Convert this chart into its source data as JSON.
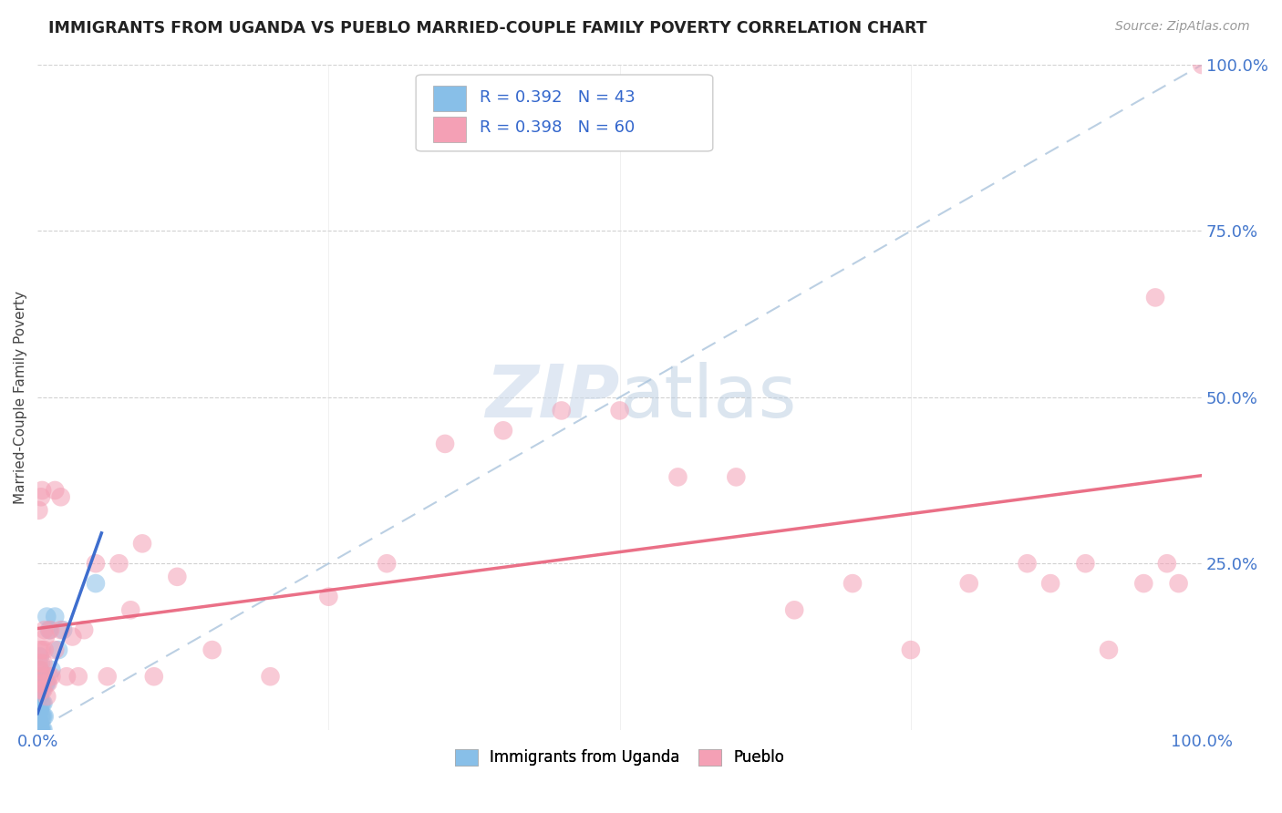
{
  "title": "IMMIGRANTS FROM UGANDA VS PUEBLO MARRIED-COUPLE FAMILY POVERTY CORRELATION CHART",
  "source": "Source: ZipAtlas.com",
  "ylabel": "Married-Couple Family Poverty",
  "legend_label1": "Immigrants from Uganda",
  "legend_label2": "Pueblo",
  "legend_r1": "R = 0.392",
  "legend_n1": "N = 43",
  "legend_r2": "R = 0.398",
  "legend_n2": "N = 60",
  "color_blue": "#88bfe8",
  "color_pink": "#f4a0b5",
  "color_blue_line": "#3366cc",
  "color_pink_line": "#e8607a",
  "color_diag": "#aac4dc",
  "background": "#ffffff",
  "blue_x": [
    0.001,
    0.001,
    0.001,
    0.001,
    0.001,
    0.001,
    0.001,
    0.001,
    0.001,
    0.001,
    0.002,
    0.002,
    0.002,
    0.002,
    0.002,
    0.002,
    0.002,
    0.002,
    0.002,
    0.003,
    0.003,
    0.003,
    0.003,
    0.003,
    0.003,
    0.004,
    0.004,
    0.004,
    0.004,
    0.005,
    0.005,
    0.005,
    0.006,
    0.006,
    0.007,
    0.008,
    0.008,
    0.01,
    0.012,
    0.015,
    0.018,
    0.022,
    0.05
  ],
  "blue_y": [
    0.0,
    0.0,
    0.0,
    0.0,
    0.0,
    0.01,
    0.02,
    0.03,
    0.05,
    0.07,
    0.0,
    0.0,
    0.0,
    0.01,
    0.03,
    0.05,
    0.07,
    0.09,
    0.11,
    0.0,
    0.0,
    0.02,
    0.04,
    0.06,
    0.08,
    0.0,
    0.02,
    0.04,
    0.06,
    0.0,
    0.02,
    0.04,
    0.02,
    0.08,
    0.07,
    0.07,
    0.17,
    0.15,
    0.09,
    0.17,
    0.12,
    0.15,
    0.22
  ],
  "pink_x": [
    0.001,
    0.001,
    0.001,
    0.002,
    0.002,
    0.002,
    0.003,
    0.003,
    0.003,
    0.004,
    0.004,
    0.004,
    0.005,
    0.005,
    0.006,
    0.006,
    0.007,
    0.008,
    0.009,
    0.01,
    0.011,
    0.012,
    0.015,
    0.015,
    0.02,
    0.02,
    0.025,
    0.03,
    0.035,
    0.04,
    0.05,
    0.06,
    0.07,
    0.08,
    0.09,
    0.1,
    0.12,
    0.15,
    0.2,
    0.25,
    0.3,
    0.35,
    0.4,
    0.45,
    0.5,
    0.55,
    0.6,
    0.65,
    0.7,
    0.75,
    0.8,
    0.85,
    0.87,
    0.9,
    0.92,
    0.95,
    0.96,
    0.97,
    0.98,
    1.0
  ],
  "pink_y": [
    0.07,
    0.1,
    0.33,
    0.06,
    0.09,
    0.12,
    0.07,
    0.1,
    0.35,
    0.08,
    0.12,
    0.36,
    0.06,
    0.1,
    0.12,
    0.15,
    0.14,
    0.05,
    0.07,
    0.08,
    0.15,
    0.08,
    0.36,
    0.12,
    0.15,
    0.35,
    0.08,
    0.14,
    0.08,
    0.15,
    0.25,
    0.08,
    0.25,
    0.18,
    0.28,
    0.08,
    0.23,
    0.12,
    0.08,
    0.2,
    0.25,
    0.43,
    0.45,
    0.48,
    0.48,
    0.38,
    0.38,
    0.18,
    0.22,
    0.12,
    0.22,
    0.25,
    0.22,
    0.25,
    0.12,
    0.22,
    0.65,
    0.25,
    0.22,
    1.0
  ]
}
